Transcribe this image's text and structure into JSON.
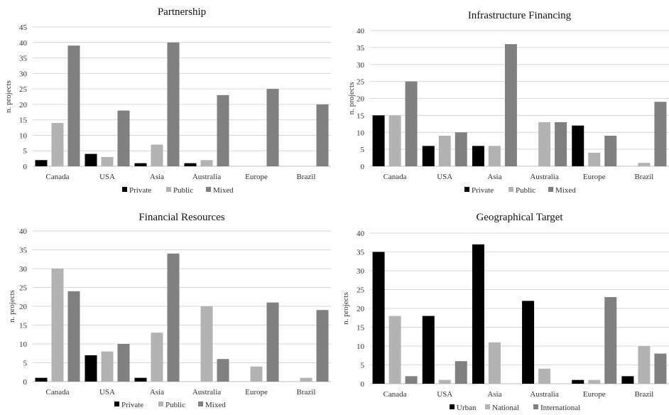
{
  "chart_data": [
    {
      "type": "bar",
      "title": "Partnership",
      "ylabel": "n. projects",
      "xlabel": "",
      "ylim": [
        0,
        45
      ],
      "yticks": [
        0,
        5,
        10,
        15,
        20,
        25,
        30,
        35,
        40,
        45
      ],
      "categories": [
        "Canada",
        "USA",
        "Asia",
        "Australia",
        "Europe",
        "Brazil"
      ],
      "series": [
        {
          "name": "Private",
          "color": "#000000",
          "values": [
            2,
            4,
            1,
            1,
            0,
            0
          ]
        },
        {
          "name": "Public",
          "color": "#b3b3b3",
          "values": [
            14,
            3,
            7,
            2,
            0,
            0
          ]
        },
        {
          "name": "Mixed",
          "color": "#808080",
          "values": [
            39,
            18,
            40,
            23,
            25,
            20
          ]
        }
      ],
      "grid": true,
      "legend": "bottom"
    },
    {
      "type": "bar",
      "title": "Infrastructure Financing",
      "ylabel": "n. projects",
      "xlabel": "",
      "ylim": [
        0,
        40
      ],
      "yticks": [
        0,
        5,
        10,
        15,
        20,
        25,
        30,
        35,
        40
      ],
      "categories": [
        "Canada",
        "USA",
        "Asia",
        "Australia",
        "Europe",
        "Brazil"
      ],
      "series": [
        {
          "name": "Private",
          "color": "#000000",
          "values": [
            15,
            6,
            6,
            0,
            12,
            0
          ]
        },
        {
          "name": "Public",
          "color": "#b3b3b3",
          "values": [
            15,
            9,
            6,
            13,
            4,
            1
          ]
        },
        {
          "name": "Mixed",
          "color": "#808080",
          "values": [
            25,
            10,
            36,
            13,
            9,
            19
          ]
        }
      ],
      "grid": true,
      "legend": "bottom"
    },
    {
      "type": "bar",
      "title": "Financial Resources",
      "ylabel": "n. projects",
      "xlabel": "",
      "ylim": [
        0,
        40
      ],
      "yticks": [
        0,
        5,
        10,
        15,
        20,
        25,
        30,
        35,
        40
      ],
      "categories": [
        "Canada",
        "USA",
        "Asia",
        "Australia",
        "Europe",
        "Brazil"
      ],
      "series": [
        {
          "name": "Private",
          "color": "#000000",
          "values": [
            1,
            7,
            1,
            0,
            0,
            0
          ]
        },
        {
          "name": "Public",
          "color": "#b3b3b3",
          "values": [
            30,
            8,
            13,
            20,
            4,
            1
          ]
        },
        {
          "name": "Mixed",
          "color": "#808080",
          "values": [
            24,
            10,
            34,
            6,
            21,
            19
          ]
        }
      ],
      "grid": true,
      "legend": "bottom"
    },
    {
      "type": "bar",
      "title": "Geographical Target",
      "ylabel": "n. projects",
      "xlabel": "",
      "ylim": [
        0,
        40
      ],
      "yticks": [
        0,
        5,
        10,
        15,
        20,
        25,
        30,
        35,
        40
      ],
      "categories": [
        "Canada",
        "USA",
        "Asia",
        "Australia",
        "Europe",
        "Brazil"
      ],
      "series": [
        {
          "name": "Urban",
          "color": "#000000",
          "values": [
            35,
            18,
            37,
            22,
            1,
            2
          ]
        },
        {
          "name": "National",
          "color": "#b3b3b3",
          "values": [
            18,
            1,
            11,
            4,
            1,
            10
          ]
        },
        {
          "name": "International",
          "color": "#808080",
          "values": [
            2,
            6,
            0,
            0,
            23,
            8
          ]
        }
      ],
      "grid": true,
      "legend": "bottom"
    }
  ]
}
